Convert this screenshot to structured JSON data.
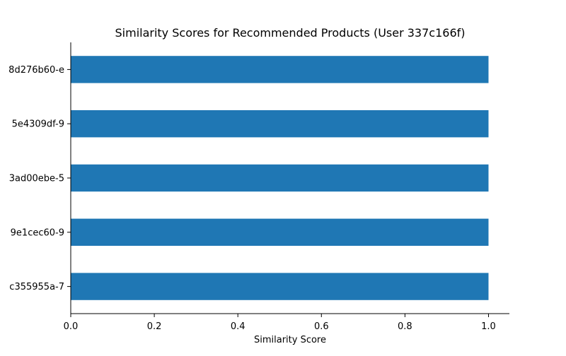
{
  "chart_data": {
    "type": "bar",
    "orientation": "horizontal",
    "title": "Similarity Scores for Recommended Products (User 337c166f)",
    "xlabel": "Similarity Score",
    "ylabel": "",
    "categories": [
      "8d276b60-e",
      "5e4309df-9",
      "3ad00ebe-5",
      "9e1cec60-9",
      "c355955a-7"
    ],
    "values": [
      1.0,
      1.0,
      1.0,
      1.0,
      1.0
    ],
    "xlim": [
      0,
      1.05
    ],
    "xticks": [
      0.0,
      0.2,
      0.4,
      0.6,
      0.8,
      1.0
    ],
    "xtick_labels": [
      "0.0",
      "0.2",
      "0.4",
      "0.6",
      "0.8",
      "1.0"
    ],
    "grid": false,
    "legend": "none",
    "bar_color": "#1f77b4"
  }
}
